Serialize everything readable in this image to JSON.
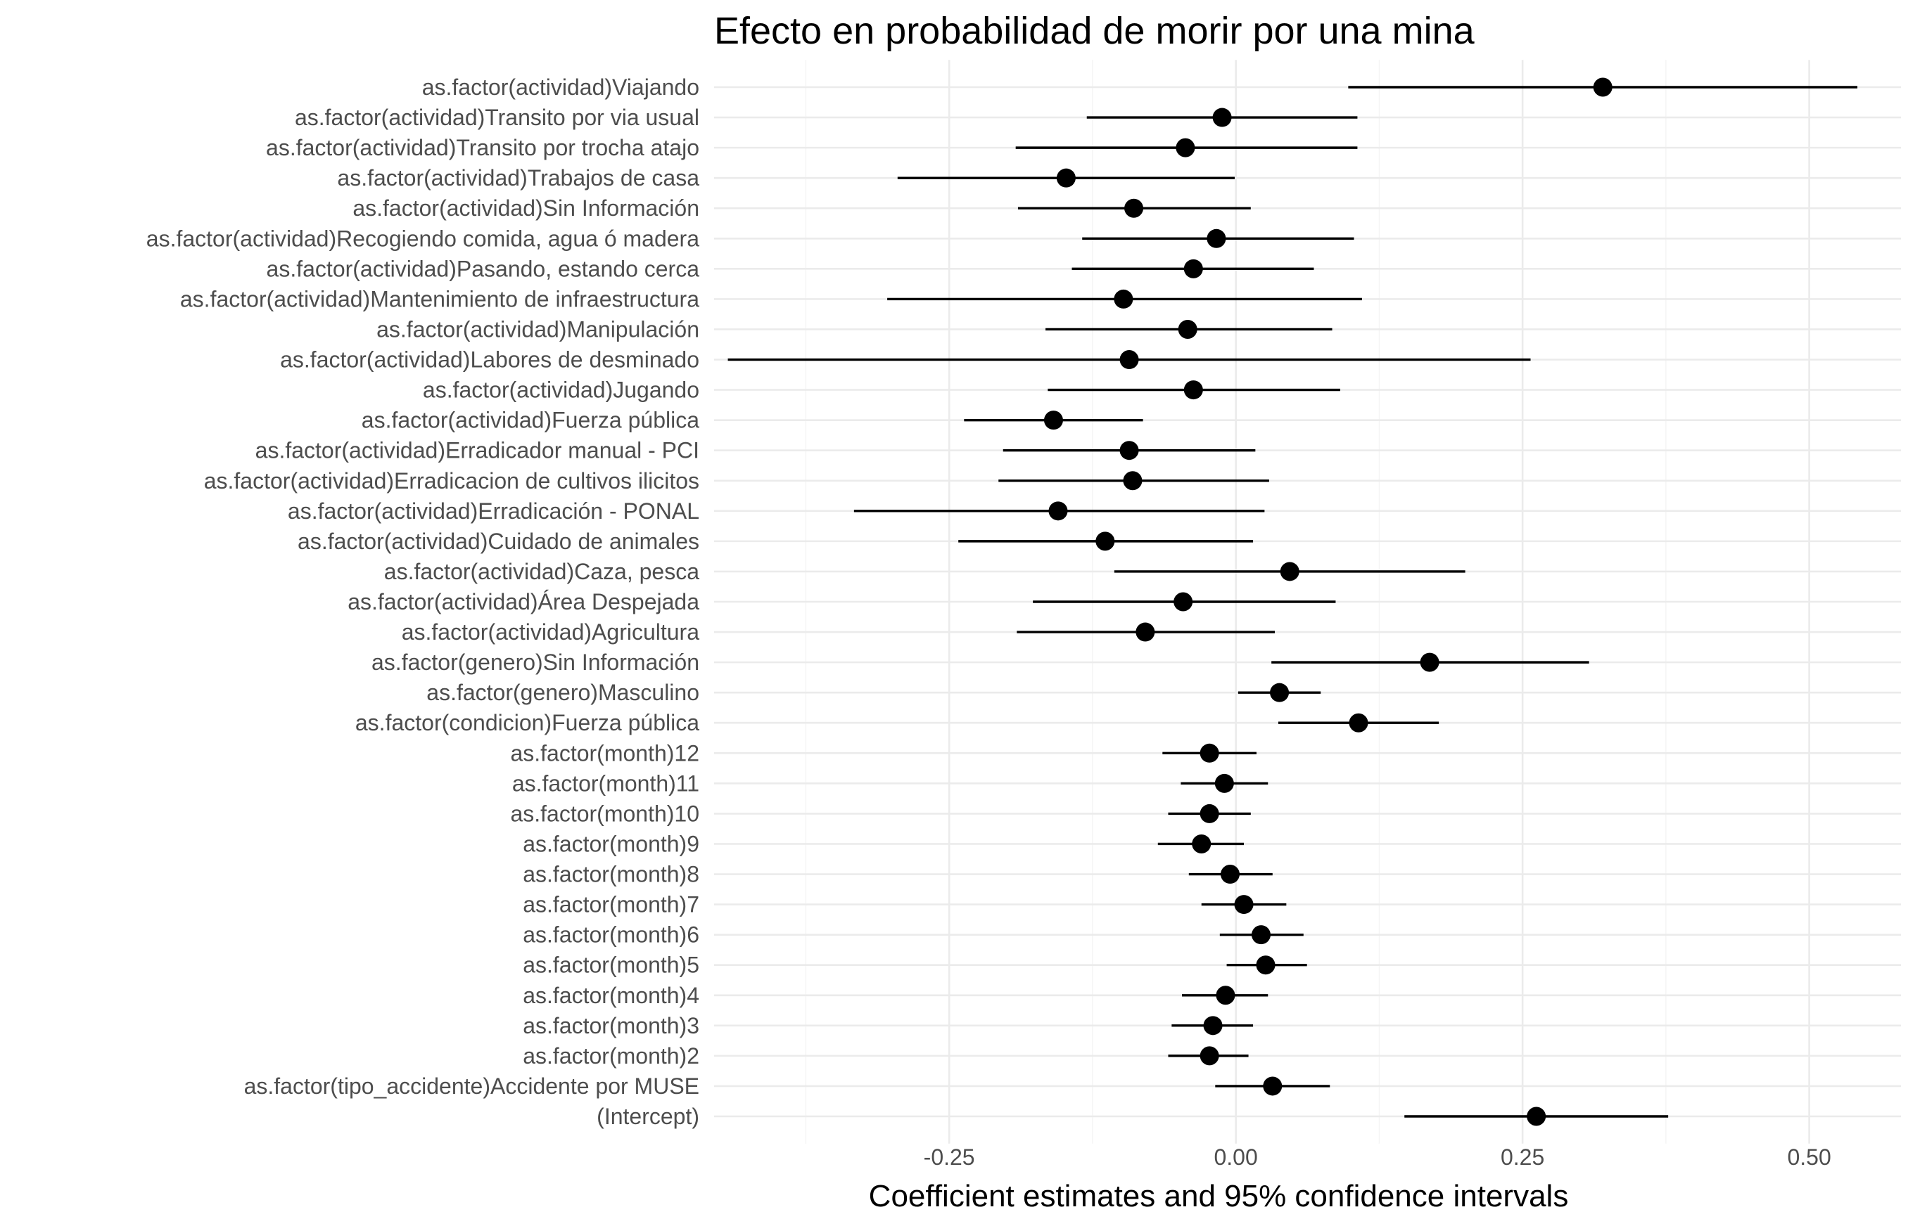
{
  "chart_data": {
    "type": "scatter",
    "subtype": "coefficient-plot",
    "title": "Efecto en probabilidad de morir por una mina",
    "xlabel": "Coefficient estimates and 95% confidence intervals",
    "ylabel": "",
    "xlim": [
      -0.455,
      0.58
    ],
    "x_ticks": [
      -0.25,
      0.0,
      0.25,
      0.5
    ],
    "x_tick_labels": [
      "-0.25",
      "0.00",
      "0.25",
      "0.50"
    ],
    "grid": true,
    "legend": "none",
    "colors": {
      "points": "#000000",
      "lines": "#000000",
      "grid": "#ebebeb",
      "labels": "#4d4d4d"
    },
    "terms": [
      {
        "label": "as.factor(actividad)Viajando",
        "estimate": 0.32,
        "lower": 0.098,
        "upper": 0.542
      },
      {
        "label": "as.factor(actividad)Transito por via usual",
        "estimate": -0.012,
        "lower": -0.13,
        "upper": 0.106
      },
      {
        "label": "as.factor(actividad)Transito por trocha atajo",
        "estimate": -0.044,
        "lower": -0.192,
        "upper": 0.106
      },
      {
        "label": "as.factor(actividad)Trabajos de casa",
        "estimate": -0.148,
        "lower": -0.295,
        "upper": -0.001
      },
      {
        "label": "as.factor(actividad)Sin Información",
        "estimate": -0.089,
        "lower": -0.19,
        "upper": 0.013
      },
      {
        "label": "as.factor(actividad)Recogiendo comida, agua ó  madera",
        "estimate": -0.017,
        "lower": -0.134,
        "upper": 0.103
      },
      {
        "label": "as.factor(actividad)Pasando, estando cerca",
        "estimate": -0.037,
        "lower": -0.143,
        "upper": 0.068
      },
      {
        "label": "as.factor(actividad)Mantenimiento de infraestructura",
        "estimate": -0.098,
        "lower": -0.304,
        "upper": 0.11
      },
      {
        "label": "as.factor(actividad)Manipulación",
        "estimate": -0.042,
        "lower": -0.166,
        "upper": 0.084
      },
      {
        "label": "as.factor(actividad)Labores de desminado",
        "estimate": -0.093,
        "lower": -0.443,
        "upper": 0.257
      },
      {
        "label": "as.factor(actividad)Jugando",
        "estimate": -0.037,
        "lower": -0.164,
        "upper": 0.091
      },
      {
        "label": "as.factor(actividad)Fuerza pública",
        "estimate": -0.159,
        "lower": -0.237,
        "upper": -0.081
      },
      {
        "label": "as.factor(actividad)Erradicador manual - PCI",
        "estimate": -0.093,
        "lower": -0.203,
        "upper": 0.017
      },
      {
        "label": "as.factor(actividad)Erradicacion de cultivos ilicitos",
        "estimate": -0.09,
        "lower": -0.207,
        "upper": 0.029
      },
      {
        "label": "as.factor(actividad)Erradicación - PONAL",
        "estimate": -0.155,
        "lower": -0.333,
        "upper": 0.025
      },
      {
        "label": "as.factor(actividad)Cuidado de animales",
        "estimate": -0.114,
        "lower": -0.242,
        "upper": 0.015
      },
      {
        "label": "as.factor(actividad)Caza, pesca",
        "estimate": 0.047,
        "lower": -0.106,
        "upper": 0.2
      },
      {
        "label": "as.factor(actividad)Área Despejada",
        "estimate": -0.046,
        "lower": -0.177,
        "upper": 0.087
      },
      {
        "label": "as.factor(actividad)Agricultura",
        "estimate": -0.079,
        "lower": -0.191,
        "upper": 0.034
      },
      {
        "label": "as.factor(genero)Sin Información",
        "estimate": 0.169,
        "lower": 0.031,
        "upper": 0.308
      },
      {
        "label": "as.factor(genero)Masculino",
        "estimate": 0.038,
        "lower": 0.002,
        "upper": 0.074
      },
      {
        "label": "as.factor(condicion)Fuerza pública",
        "estimate": 0.107,
        "lower": 0.037,
        "upper": 0.177
      },
      {
        "label": "as.factor(month)12",
        "estimate": -0.023,
        "lower": -0.064,
        "upper": 0.018
      },
      {
        "label": "as.factor(month)11",
        "estimate": -0.01,
        "lower": -0.048,
        "upper": 0.028
      },
      {
        "label": "as.factor(month)10",
        "estimate": -0.023,
        "lower": -0.059,
        "upper": 0.013
      },
      {
        "label": "as.factor(month)9",
        "estimate": -0.03,
        "lower": -0.068,
        "upper": 0.007
      },
      {
        "label": "as.factor(month)8",
        "estimate": -0.005,
        "lower": -0.041,
        "upper": 0.032
      },
      {
        "label": "as.factor(month)7",
        "estimate": 0.007,
        "lower": -0.03,
        "upper": 0.044
      },
      {
        "label": "as.factor(month)6",
        "estimate": 0.022,
        "lower": -0.014,
        "upper": 0.059
      },
      {
        "label": "as.factor(month)5",
        "estimate": 0.026,
        "lower": -0.008,
        "upper": 0.062
      },
      {
        "label": "as.factor(month)4",
        "estimate": -0.009,
        "lower": -0.047,
        "upper": 0.028
      },
      {
        "label": "as.factor(month)3",
        "estimate": -0.02,
        "lower": -0.056,
        "upper": 0.015
      },
      {
        "label": "as.factor(month)2",
        "estimate": -0.023,
        "lower": -0.059,
        "upper": 0.011
      },
      {
        "label": "as.factor(tipo_accidente)Accidente por MUSE",
        "estimate": 0.032,
        "lower": -0.018,
        "upper": 0.082
      },
      {
        "label": "(Intercept)",
        "estimate": 0.262,
        "lower": 0.147,
        "upper": 0.377
      }
    ]
  }
}
